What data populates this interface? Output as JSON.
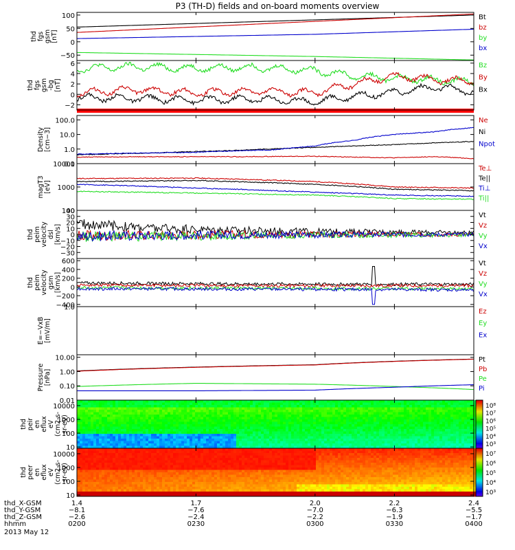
{
  "title": "P3 (TH-D) fields and on-board moments overview",
  "colors": {
    "black": "#000000",
    "red": "#cc0000",
    "green": "#22dd22",
    "blue": "#0000cc",
    "frame": "#000000"
  },
  "chart_data": [
    {
      "type": "line",
      "ylabel": [
        "thd",
        "fgs",
        "gsm",
        "[nT]"
      ],
      "ylim": [
        -70,
        110
      ],
      "yticks": [
        {
          "v": 100,
          "t": "100"
        },
        {
          "v": 50,
          "t": "50"
        },
        {
          "v": 0,
          "t": "0"
        },
        {
          "v": -50,
          "t": "−50"
        }
      ],
      "series": [
        {
          "name": "Bt",
          "color": "black",
          "x": [
            1.4,
            2.4
          ],
          "values": [
            55,
            100
          ]
        },
        {
          "name": "bz",
          "color": "red",
          "x": [
            1.4,
            2.4
          ],
          "values": [
            35,
            104
          ]
        },
        {
          "name": "by",
          "color": "green",
          "x": [
            1.4,
            2.0,
            2.4
          ],
          "values": [
            -40,
            -55,
            -68
          ]
        },
        {
          "name": "bx",
          "color": "blue",
          "x": [
            1.4,
            2.0,
            2.4
          ],
          "values": [
            12,
            28,
            47
          ]
        }
      ]
    },
    {
      "type": "line",
      "ylabel": [
        "thd",
        "fgs",
        "gsm",
        "-bg",
        "[nT]"
      ],
      "ylim": [
        -3,
        6.5
      ],
      "yticks": [
        {
          "v": 6,
          "t": "6"
        },
        {
          "v": 4,
          "t": "4"
        },
        {
          "v": 2,
          "t": "2"
        },
        {
          "v": 0,
          "t": "0"
        },
        {
          "v": -2,
          "t": "−2"
        }
      ],
      "series": [
        {
          "name": "Bz",
          "color": "green",
          "x": [
            1.4,
            1.55,
            1.7,
            1.85,
            2.0,
            2.1,
            2.2,
            2.3,
            2.4
          ],
          "values": [
            5.0,
            5.3,
            5.0,
            5.2,
            4.6,
            3.5,
            3.1,
            2.8,
            2.4
          ]
        },
        {
          "name": "By",
          "color": "red",
          "x": [
            1.4,
            1.55,
            1.7,
            1.85,
            2.0,
            2.1,
            2.2,
            2.3,
            2.4
          ],
          "values": [
            0.3,
            0.9,
            0.3,
            0.6,
            0.3,
            2.1,
            3.5,
            2.8,
            2.5
          ]
        },
        {
          "name": "Bx",
          "color": "black",
          "x": [
            1.4,
            1.55,
            1.7,
            1.85,
            2.0,
            2.1,
            2.2,
            2.3,
            2.4
          ],
          "values": [
            -0.6,
            -0.8,
            -1.1,
            -0.9,
            -1.4,
            -0.3,
            0.4,
            1.4,
            0.5
          ]
        }
      ]
    },
    {
      "type": "line",
      "ylog": true,
      "ylabel": [
        "Density",
        "[cm−3]"
      ],
      "ylim": [
        0.1,
        200
      ],
      "yticks": [
        {
          "v": 100,
          "t": "100.0"
        },
        {
          "v": 10,
          "t": "10.0"
        },
        {
          "v": 1,
          "t": "1.0"
        },
        {
          "v": 0.1,
          "t": "0.1"
        }
      ],
      "series": [
        {
          "name": "Ne",
          "color": "red",
          "x": [
            1.4,
            1.6,
            1.8,
            2.0,
            2.1,
            2.2,
            2.3,
            2.4
          ],
          "values": [
            0.28,
            0.3,
            0.3,
            0.32,
            0.28,
            0.25,
            0.3,
            0.22
          ]
        },
        {
          "name": "Ni",
          "color": "black",
          "x": [
            1.4,
            1.6,
            1.8,
            2.0,
            2.2,
            2.4
          ],
          "values": [
            0.4,
            0.55,
            0.8,
            1.3,
            2.0,
            3.3
          ]
        },
        {
          "name": "Npot",
          "color": "blue",
          "x": [
            1.4,
            1.7,
            1.9,
            2.0,
            2.1,
            2.2,
            2.3,
            2.4
          ],
          "values": [
            0.45,
            0.6,
            0.9,
            1.6,
            4.0,
            10,
            15,
            30
          ]
        }
      ]
    },
    {
      "type": "line",
      "ylog": true,
      "ylabel": [
        "magT3",
        "[eV]"
      ],
      "ylim": [
        100,
        10000
      ],
      "yticks": [
        {
          "v": 10000,
          "t": "10000"
        },
        {
          "v": 1000,
          "t": "1000"
        },
        {
          "v": 100,
          "t": "100"
        }
      ],
      "series": [
        {
          "name": "Te⊥",
          "color": "red",
          "x": [
            1.4,
            1.7,
            2.0,
            2.2,
            2.4
          ],
          "values": [
            2300,
            2400,
            1700,
            1000,
            900
          ]
        },
        {
          "name": "Te||",
          "color": "black",
          "x": [
            1.4,
            1.7,
            2.0,
            2.2,
            2.4
          ],
          "values": [
            1700,
            1900,
            1300,
            800,
            700
          ]
        },
        {
          "name": "Ti⊥",
          "color": "blue",
          "x": [
            1.4,
            1.7,
            2.0,
            2.2,
            2.4
          ],
          "values": [
            1300,
            900,
            600,
            450,
            400
          ]
        },
        {
          "name": "Ti||",
          "color": "green",
          "x": [
            1.4,
            1.7,
            2.0,
            2.2,
            2.4
          ],
          "values": [
            650,
            550,
            450,
            320,
            300
          ]
        }
      ]
    },
    {
      "type": "line",
      "ylabel": [
        "thd",
        "peim",
        "velocity",
        "dsl",
        "[km/s]"
      ],
      "ylim": [
        -40,
        40
      ],
      "yticks": [
        {
          "v": 40,
          "t": "40"
        },
        {
          "v": 30,
          "t": "30"
        },
        {
          "v": 20,
          "t": "20"
        },
        {
          "v": 10,
          "t": "10"
        },
        {
          "v": 0,
          "t": "0"
        },
        {
          "v": -10,
          "t": "−10"
        },
        {
          "v": -20,
          "t": "−20"
        },
        {
          "v": -30,
          "t": "−30"
        }
      ],
      "series": [
        {
          "name": "Vt",
          "color": "black",
          "x": [
            1.4,
            1.6,
            1.8,
            2.0,
            2.2,
            2.4
          ],
          "values": [
            18,
            10,
            7,
            5,
            4,
            3
          ]
        },
        {
          "name": "Vz",
          "color": "red",
          "x": [
            1.4,
            1.6,
            1.8,
            2.0,
            2.2,
            2.4
          ],
          "values": [
            -2,
            -1,
            0,
            0,
            0,
            0
          ]
        },
        {
          "name": "Vy",
          "color": "green",
          "x": [
            1.4,
            1.6,
            1.8,
            2.0,
            2.2,
            2.4
          ],
          "values": [
            -4,
            -3,
            -2,
            -1,
            -1,
            -1
          ]
        },
        {
          "name": "Vx",
          "color": "blue",
          "x": [
            1.4,
            1.6,
            1.8,
            2.0,
            2.2,
            2.4
          ],
          "values": [
            -3,
            -2,
            -1,
            -1,
            0,
            0
          ]
        }
      ]
    },
    {
      "type": "line",
      "ylabel": [
        "thd",
        "peim",
        "velocity",
        "gsm",
        "[km/s]"
      ],
      "ylim": [
        -450,
        650
      ],
      "yticks": [
        {
          "v": 600,
          "t": "600"
        },
        {
          "v": 400,
          "t": "400"
        },
        {
          "v": 200,
          "t": "200"
        },
        {
          "v": 0,
          "t": "0"
        },
        {
          "v": -200,
          "t": "−200"
        },
        {
          "v": -400,
          "t": "−400"
        }
      ],
      "series": [
        {
          "name": "Vt",
          "color": "black",
          "x": [
            1.4,
            1.8,
            2.2,
            2.4
          ],
          "values": [
            90,
            70,
            60,
            60
          ]
        },
        {
          "name": "Vz",
          "color": "red",
          "x": [
            1.4,
            1.8,
            2.2,
            2.4
          ],
          "values": [
            40,
            30,
            30,
            30
          ]
        },
        {
          "name": "Vy",
          "color": "green",
          "x": [
            1.4,
            1.8,
            2.2,
            2.4
          ],
          "values": [
            -20,
            -30,
            -40,
            -40
          ]
        },
        {
          "name": "Vx",
          "color": "blue",
          "x": [
            1.4,
            1.8,
            2.2,
            2.4
          ],
          "values": [
            -40,
            -50,
            -60,
            -70
          ]
        }
      ]
    },
    {
      "type": "line",
      "ylabel": [
        "E=−VxB",
        "[mV/m]"
      ],
      "ylim": [
        0,
        1
      ],
      "yticks": [
        {
          "v": 1,
          "t": "1.0"
        }
      ],
      "series": [
        {
          "name": "Ez",
          "color": "red",
          "x": [],
          "values": []
        },
        {
          "name": "Ey",
          "color": "green",
          "x": [],
          "values": []
        },
        {
          "name": "Ex",
          "color": "blue",
          "x": [],
          "values": []
        }
      ]
    },
    {
      "type": "line",
      "ylog": true,
      "ylabel": [
        "Pressure",
        "[nPa]"
      ],
      "ylim": [
        0.01,
        15
      ],
      "yticks": [
        {
          "v": 10,
          "t": "10.00"
        },
        {
          "v": 1,
          "t": "1.00"
        },
        {
          "v": 0.1,
          "t": "0.10"
        },
        {
          "v": 0.01,
          "t": "0.01"
        }
      ],
      "series": [
        {
          "name": "Pt",
          "color": "black",
          "x": [
            1.4,
            2.0,
            2.4
          ],
          "values": [
            1.1,
            3.0,
            7.5
          ]
        },
        {
          "name": "Pb",
          "color": "red",
          "x": [
            1.4,
            2.0,
            2.4
          ],
          "values": [
            1.05,
            2.9,
            7.3
          ]
        },
        {
          "name": "Pe",
          "color": "green",
          "x": [
            1.4,
            1.7,
            2.0,
            2.2,
            2.4
          ],
          "values": [
            0.09,
            0.15,
            0.13,
            0.09,
            0.055
          ]
        },
        {
          "name": "Pi",
          "color": "blue",
          "x": [
            1.4,
            1.7,
            2.0,
            2.2,
            2.4
          ],
          "values": [
            0.045,
            0.045,
            0.05,
            0.08,
            0.12
          ]
        }
      ]
    },
    {
      "type": "heatmap",
      "ylabel": [
        "thd",
        "peir",
        "en",
        "eflux",
        "eV",
        "(cm2-s-",
        "sr-eV)"
      ],
      "ylog": true,
      "ylim": [
        8,
        25000
      ],
      "yticks": [
        {
          "v": 10000,
          "t": "10000"
        },
        {
          "v": 1000,
          "t": "1000"
        },
        {
          "v": 100,
          "t": "100"
        },
        {
          "v": 10,
          "t": "10"
        }
      ],
      "colorbar_ticks": [
        "10⁸",
        "10⁷",
        "10⁶",
        "10⁵",
        "10⁴",
        "10³"
      ]
    },
    {
      "type": "heatmap",
      "ylabel": [
        "thd",
        "peer",
        "en",
        "eflux",
        "eV",
        "(cm2-s-",
        "sr-eV)"
      ],
      "ylog": true,
      "ylim": [
        8,
        25000
      ],
      "yticks": [
        {
          "v": 10000,
          "t": "10000"
        },
        {
          "v": 1000,
          "t": "1000"
        },
        {
          "v": 100,
          "t": "100"
        },
        {
          "v": 10,
          "t": "10"
        }
      ],
      "colorbar_ticks": [
        "10⁷",
        "10⁶",
        "10⁵",
        "10⁴",
        "10³"
      ]
    }
  ],
  "xaxis": {
    "ticks": [
      1.4,
      1.7,
      2.0,
      2.2,
      2.4
    ],
    "rows": [
      {
        "label": "thd_X-GSM",
        "values": [
          "1.4",
          "1.7",
          "2.0",
          "2.2",
          "2.4"
        ]
      },
      {
        "label": "thd_Y-GSM",
        "values": [
          "−8.1",
          "−7.6",
          "−7.0",
          "−6.3",
          "−5.5"
        ]
      },
      {
        "label": "thd_Z-GSM",
        "values": [
          "−2.6",
          "−2.4",
          "−2.2",
          "−1.9",
          "−1.7"
        ]
      },
      {
        "label": "hhmm",
        "values": [
          "0200",
          "0230",
          "0300",
          "0330",
          "0400"
        ]
      }
    ],
    "date": "2013 May 12"
  }
}
